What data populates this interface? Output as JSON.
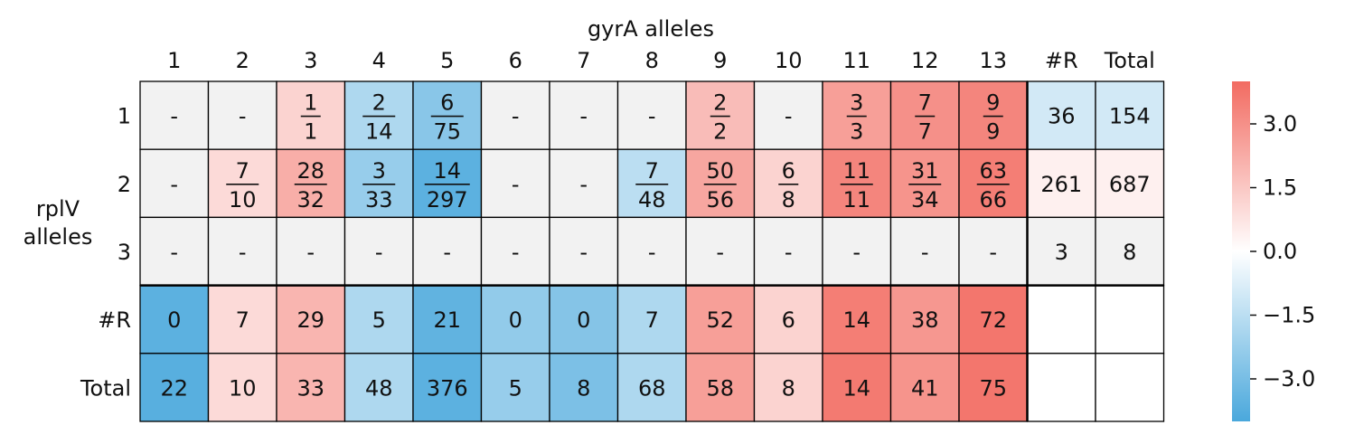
{
  "chart_data": {
    "type": "heatmap",
    "title": "gyrA alleles",
    "ylabel": "rplV\nalleles",
    "columns": [
      "1",
      "2",
      "3",
      "4",
      "5",
      "6",
      "7",
      "8",
      "9",
      "10",
      "11",
      "12",
      "13",
      "#R",
      "Total"
    ],
    "rows": [
      "1",
      "2",
      "3",
      "#R",
      "Total"
    ],
    "cells": [
      [
        "-",
        "-",
        "1/1",
        "2/14",
        "6/75",
        "-",
        "-",
        "-",
        "2/2",
        "-",
        "3/3",
        "7/7",
        "9/9",
        "36",
        "154"
      ],
      [
        "-",
        "7/10",
        "28/32",
        "3/33",
        "14/297",
        "-",
        "-",
        "7/48",
        "50/56",
        "6/8",
        "11/11",
        "31/34",
        "63/66",
        "261",
        "687"
      ],
      [
        "-",
        "-",
        "-",
        "-",
        "-",
        "-",
        "-",
        "-",
        "-",
        "-",
        "-",
        "-",
        "-",
        "3",
        "8"
      ],
      [
        "0",
        "7",
        "29",
        "5",
        "21",
        "0",
        "0",
        "7",
        "52",
        "6",
        "14",
        "38",
        "72",
        "",
        ""
      ],
      [
        "22",
        "10",
        "33",
        "48",
        "376",
        "5",
        "8",
        "68",
        "58",
        "8",
        "14",
        "41",
        "75",
        "",
        ""
      ]
    ],
    "values": [
      [
        null,
        null,
        1.2,
        -1.8,
        -2.6,
        null,
        null,
        null,
        1.8,
        null,
        2.6,
        3.0,
        3.3,
        -1.0,
        -1.0
      ],
      [
        null,
        1.0,
        2.2,
        -2.3,
        -3.6,
        null,
        null,
        -1.5,
        2.4,
        1.2,
        3.3,
        2.9,
        3.5,
        0.4,
        0.4
      ],
      [
        null,
        null,
        null,
        null,
        null,
        null,
        null,
        null,
        null,
        null,
        null,
        null,
        null,
        null,
        null
      ],
      [
        -3.6,
        1.0,
        2.0,
        -1.8,
        -3.5,
        -2.4,
        -2.7,
        -1.8,
        2.6,
        1.2,
        3.5,
        2.8,
        3.7,
        null,
        null
      ],
      [
        -3.7,
        1.0,
        2.0,
        -1.8,
        -3.6,
        -2.3,
        -2.9,
        -1.8,
        2.6,
        1.2,
        3.6,
        2.9,
        3.7,
        null,
        null
      ]
    ],
    "null_color": "#f2f2f2",
    "colorbar": {
      "vmin": -4.0,
      "vmax": 4.0,
      "ticks": [
        3.0,
        1.5,
        0.0,
        -1.5,
        -3.0
      ],
      "tick_labels": [
        "3.0",
        "1.5",
        "0.0",
        "−1.5",
        "−3.0"
      ],
      "low_color": "#4aa8dc",
      "mid_color": "#ffffff",
      "high_color": "#f26b61"
    },
    "grid": true
  }
}
